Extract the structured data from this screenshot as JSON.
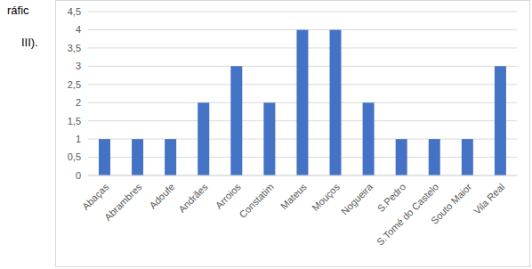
{
  "annotations": [
    "ráfic",
    "III)."
  ],
  "chart_data": {
    "type": "bar",
    "categories": [
      "Abaças",
      "Abrambres",
      "Adoufe",
      "Andrães",
      "Arroios",
      "Constatim",
      "Mateus",
      "Mouços",
      "Nogueira",
      "S.Pedro",
      "S.Tomé do Castelo",
      "Souto Maior",
      "Vila Real"
    ],
    "values": [
      1,
      1,
      1,
      2,
      3,
      2,
      4,
      4,
      2,
      1,
      1,
      1,
      3
    ],
    "color": "#4472c4",
    "ylim": [
      0,
      4.5
    ],
    "yticks": [
      0,
      {
        "value": 0.5,
        "label": "0,5"
      },
      1,
      {
        "value": 1.5,
        "label": "1,5"
      },
      2,
      {
        "value": 2.5,
        "label": "2,5"
      },
      3,
      {
        "value": 3.5,
        "label": "3,5"
      },
      4,
      {
        "value": 4.5,
        "label": "4,5"
      }
    ],
    "grid": true
  }
}
